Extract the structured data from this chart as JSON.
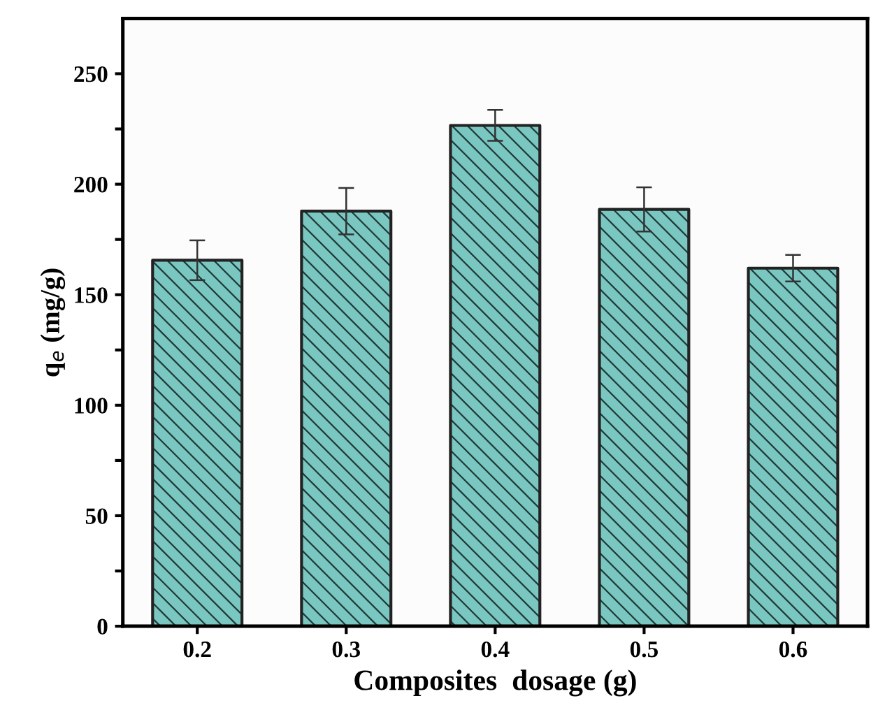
{
  "chart_data": {
    "type": "bar",
    "xlabel": "Composites  dosage (g)",
    "ylabel": "q$_{e}$ (mg/g)",
    "categories": [
      "0.2",
      "0.3",
      "0.4",
      "0.5",
      "0.6"
    ],
    "values": [
      165.6,
      187.8,
      226.6,
      188.6,
      162
    ],
    "errors": [
      9,
      10.5,
      7,
      10,
      6
    ],
    "color": "#7ac6c1",
    "ylim": [
      0,
      275
    ],
    "yticks": [
      0,
      {
        "value": 25,
        "label": null
      },
      50,
      {
        "value": 75,
        "label": null
      },
      100,
      {
        "value": 125,
        "label": null
      },
      150,
      {
        "value": 175,
        "label": null
      },
      200,
      {
        "value": 225,
        "label": null
      },
      250
    ],
    "grid": false
  }
}
